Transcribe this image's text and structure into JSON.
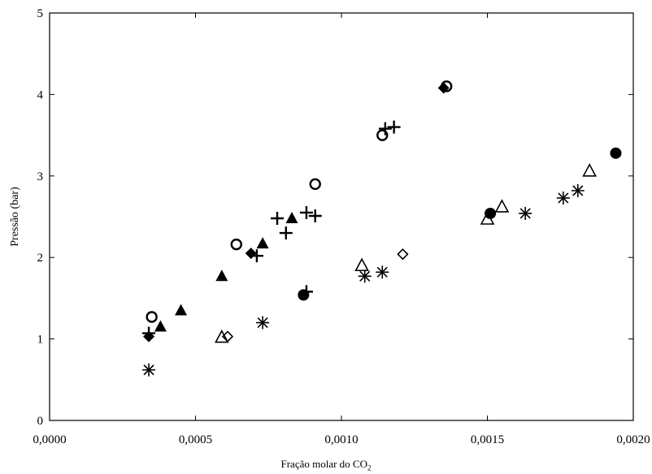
{
  "chart_data": {
    "type": "scatter",
    "title": "",
    "xlabel": "Fração molar do CO",
    "xlabel_subscript": "2",
    "ylabel": "Pressão (bar)",
    "xlim": [
      0,
      0.002
    ],
    "ylim": [
      0,
      5
    ],
    "x_ticks": [
      0,
      0.0005,
      0.001,
      0.0015,
      0.002
    ],
    "x_tick_labels": [
      "0,0000",
      "0,0005",
      "0,0010",
      "0,0015",
      "0,0020"
    ],
    "y_ticks": [
      0,
      1,
      2,
      3,
      4,
      5
    ],
    "y_tick_labels": [
      "0",
      "1",
      "2",
      "3",
      "4",
      "5"
    ],
    "grid": false,
    "series": [
      {
        "marker": "open-circle",
        "points": [
          [
            0.00035,
            1.27
          ],
          [
            0.00064,
            2.16
          ],
          [
            0.00091,
            2.9
          ],
          [
            0.00114,
            3.5
          ],
          [
            0.00136,
            4.1
          ]
        ]
      },
      {
        "marker": "filled-circle",
        "points": [
          [
            0.00087,
            1.54
          ],
          [
            0.00151,
            2.54
          ],
          [
            0.00194,
            3.28
          ]
        ]
      },
      {
        "marker": "filled-diamond",
        "points": [
          [
            0.00034,
            1.03
          ],
          [
            0.00069,
            2.05
          ],
          [
            0.00135,
            4.08
          ]
        ]
      },
      {
        "marker": "open-diamond",
        "points": [
          [
            0.00061,
            1.03
          ],
          [
            0.00121,
            2.04
          ]
        ]
      },
      {
        "marker": "filled-triangle",
        "points": [
          [
            0.00038,
            1.15
          ],
          [
            0.00045,
            1.35
          ],
          [
            0.00059,
            1.77
          ],
          [
            0.00073,
            2.17
          ],
          [
            0.00083,
            2.48
          ]
        ]
      },
      {
        "marker": "open-triangle",
        "points": [
          [
            0.00059,
            1.02
          ],
          [
            0.00107,
            1.9
          ],
          [
            0.0015,
            2.47
          ],
          [
            0.00155,
            2.62
          ],
          [
            0.00185,
            3.06
          ]
        ]
      },
      {
        "marker": "plus",
        "points": [
          [
            0.00034,
            1.07
          ],
          [
            0.00071,
            2.02
          ],
          [
            0.00078,
            2.48
          ],
          [
            0.00081,
            2.3
          ],
          [
            0.00088,
            2.55
          ],
          [
            0.00091,
            2.51
          ],
          [
            0.00088,
            1.58
          ],
          [
            0.00115,
            3.58
          ],
          [
            0.00118,
            3.6
          ]
        ]
      },
      {
        "marker": "asterisk",
        "points": [
          [
            0.00034,
            0.62
          ],
          [
            0.00073,
            1.2
          ],
          [
            0.00108,
            1.77
          ],
          [
            0.00114,
            1.82
          ],
          [
            0.00163,
            2.54
          ],
          [
            0.00176,
            2.73
          ],
          [
            0.00181,
            2.82
          ]
        ]
      }
    ]
  }
}
